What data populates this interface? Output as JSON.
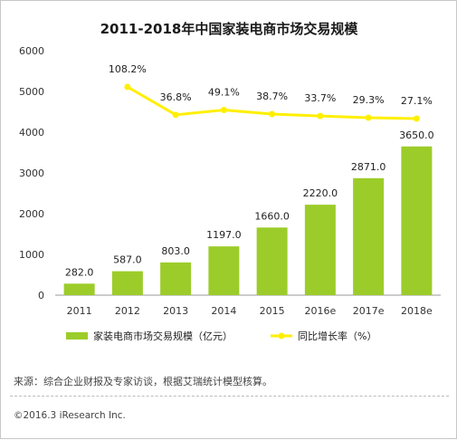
{
  "chart_data": {
    "type": "bar",
    "title": "2011-2018年中国家装电商市场交易规模",
    "categories": [
      "2011",
      "2012",
      "2013",
      "2014",
      "2015",
      "2016e",
      "2017e",
      "2018e"
    ],
    "ylim": [
      0,
      6000
    ],
    "yticks": [
      0,
      1000,
      2000,
      3000,
      4000,
      5000,
      6000
    ],
    "grid": false,
    "legend_position": "bottom",
    "series": [
      {
        "name": "家装电商市场交易规模（亿元）",
        "type": "bar",
        "color": "#9ccc2a",
        "values": [
          282.0,
          587.0,
          803.0,
          1197.0,
          1660.0,
          2220.0,
          2871.0,
          3650.0
        ],
        "labels": [
          "282.0",
          "587.0",
          "803.0",
          "1197.0",
          "1660.0",
          "2220.0",
          "2871.0",
          "3650.0"
        ]
      },
      {
        "name": "同比增长率（%）",
        "type": "line",
        "color": "#ffef00",
        "values": [
          null,
          108.2,
          36.8,
          49.1,
          38.7,
          33.7,
          29.3,
          27.1
        ],
        "labels": [
          "",
          "108.2%",
          "36.8%",
          "49.1%",
          "38.7%",
          "33.7%",
          "29.3%",
          "27.1%"
        ]
      }
    ]
  },
  "footer": {
    "source": "来源：综合企业财报及专家访谈，根据艾瑞统计模型核算。",
    "copyright": "©2016.3 iResearch Inc."
  }
}
